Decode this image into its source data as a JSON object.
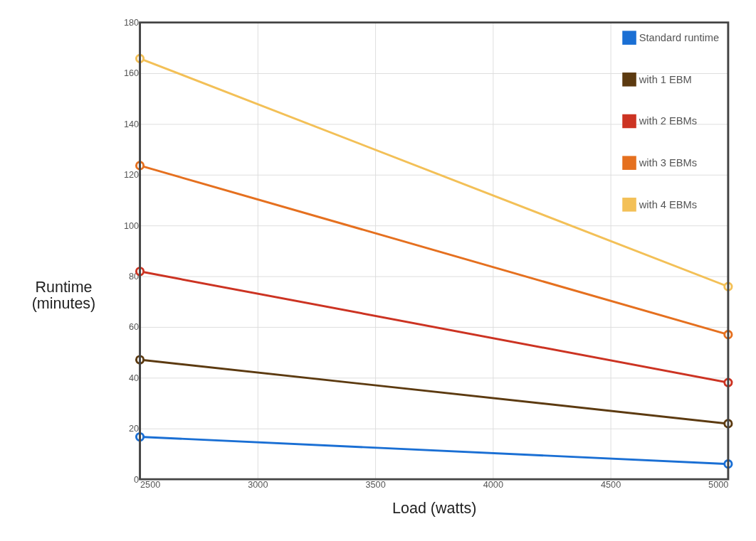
{
  "chart_data": {
    "type": "line",
    "xlabel": "Load (watts)",
    "ylabel": "Runtime (minutes)",
    "x": [
      2500,
      5000
    ],
    "series": [
      {
        "name": "Standard runtime",
        "color": "#1a6fd4",
        "values": [
          16.7,
          6.0
        ]
      },
      {
        "name": "with 1 EBM",
        "color": "#5c3a10",
        "values": [
          47.1,
          21.9
        ]
      },
      {
        "name": "with 2 EBMs",
        "color": "#cc3322",
        "values": [
          81.9,
          38.1
        ]
      },
      {
        "name": "with 3 EBMs",
        "color": "#e5701f",
        "values": [
          123.6,
          57.0
        ]
      },
      {
        "name": "with 4 EBMs",
        "color": "#f3c057",
        "values": [
          165.8,
          75.9
        ]
      }
    ],
    "xlim": [
      2500,
      5000
    ],
    "xticks": [
      2500,
      3000,
      3500,
      4000,
      4500,
      5000
    ],
    "ylim": [
      0,
      180
    ],
    "yticks": [
      0,
      20,
      40,
      60,
      80,
      100,
      120,
      140,
      160,
      180
    ],
    "grid": true,
    "legend": "top right",
    "marker": "circle",
    "line_style": "solid"
  }
}
